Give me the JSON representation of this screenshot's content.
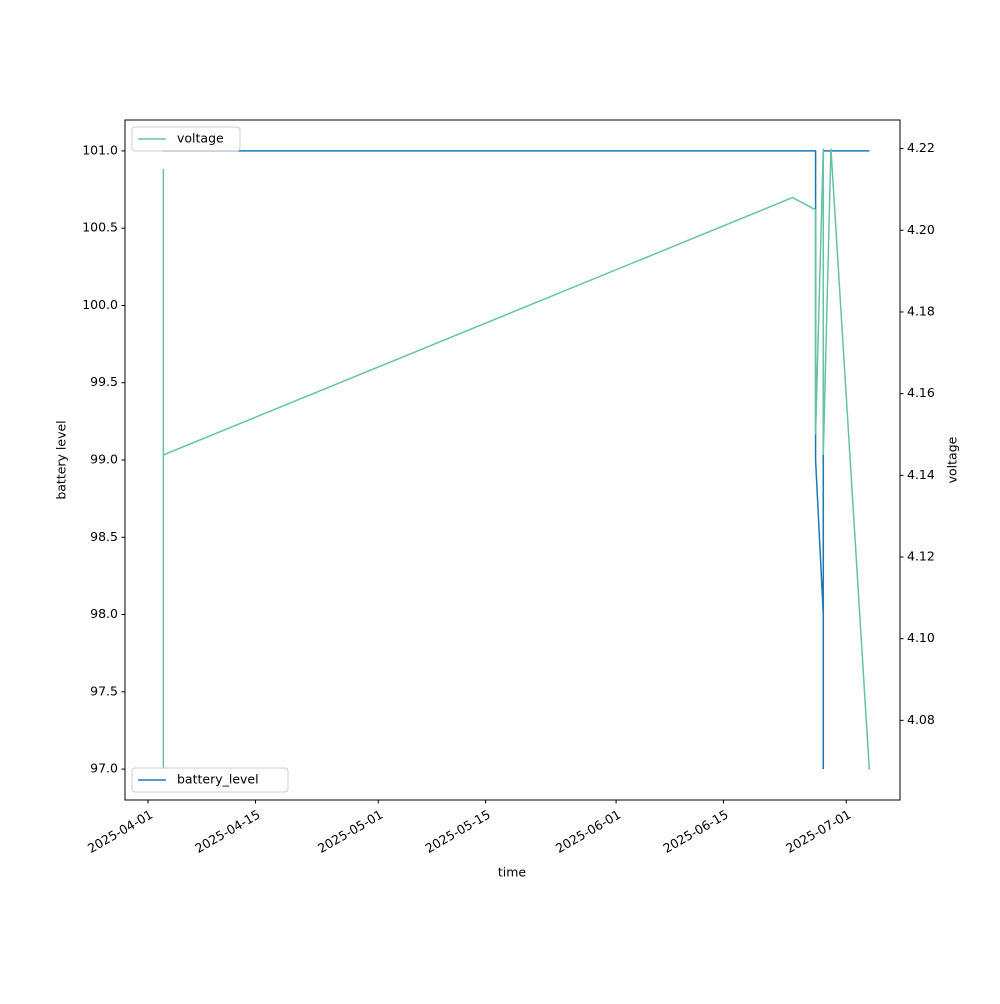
{
  "chart_data": {
    "type": "line",
    "xlabel": "time",
    "ylabel": "battery level",
    "y2label": "voltage",
    "xlim": [
      "2025-03-29",
      "2025-07-08"
    ],
    "xticks": [
      "2025-04-01",
      "2025-04-15",
      "2025-05-01",
      "2025-05-15",
      "2025-06-01",
      "2025-06-15",
      "2025-07-01"
    ],
    "ylim": [
      96.8,
      101.2
    ],
    "yticks": [
      {
        "value": 97,
        "label": "97.0"
      },
      97.5,
      {
        "value": 98,
        "label": "98.0"
      },
      98.5,
      {
        "value": 99,
        "label": "99.0"
      },
      99.5,
      {
        "value": 100,
        "label": "100.0"
      },
      100.5,
      {
        "value": 101,
        "label": "101.0"
      }
    ],
    "y2lim": [
      4.0605,
      4.227
    ],
    "y2ticks": [
      4.08,
      {
        "value": 4.1,
        "label": "4.10"
      },
      4.12,
      4.14,
      4.16,
      4.18,
      {
        "value": 4.2,
        "label": "4.20"
      },
      4.22
    ],
    "series": [
      {
        "name": "battery_level",
        "color": "#1f77b4",
        "axis": "y",
        "legend": "lower left",
        "x": [
          "2025-04-03",
          "2025-06-27",
          "2025-06-27",
          "2025-06-27",
          "2025-06-28",
          "2025-06-28",
          "2025-06-28",
          "2025-07-04"
        ],
        "values": [
          101,
          101,
          100,
          99,
          98,
          97,
          101,
          101
        ]
      },
      {
        "name": "voltage",
        "color": "#66c2a5",
        "axis": "y2",
        "legend": "upper left",
        "x": [
          "2025-04-03",
          "2025-04-03",
          "2025-04-03",
          "2025-04-03",
          "2025-04-03",
          "2025-04-03",
          "2025-04-03",
          "2025-04-03",
          "2025-04-03",
          "2025-04-03",
          "2025-06-24",
          "2025-06-27",
          "2025-06-27",
          "2025-06-28",
          "2025-06-28",
          "2025-06-29",
          "2025-07-04"
        ],
        "values": [
          4.068,
          4.215,
          4.11,
          4.213,
          4.1,
          4.19,
          4.11,
          4.18,
          4.13,
          4.145,
          4.208,
          4.205,
          4.15,
          4.22,
          4.145,
          4.22,
          4.068
        ]
      }
    ]
  }
}
